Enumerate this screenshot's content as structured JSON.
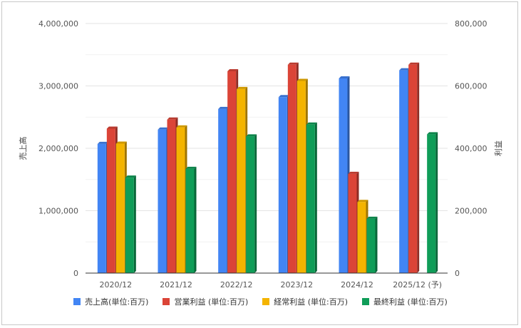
{
  "chart_data": {
    "type": "bar",
    "categories": [
      "2020/12",
      "2021/12",
      "2022/12",
      "2023/12",
      "2024/12",
      "2025/12 (予)"
    ],
    "left_axis": {
      "label": "売上高",
      "ylim": [
        0,
        4000000
      ],
      "ticks": [
        "0",
        "1,000,000",
        "2,000,000",
        "3,000,000",
        "4,000,000"
      ]
    },
    "right_axis": {
      "label": "利益",
      "ylim": [
        0,
        800000
      ],
      "ticks": [
        "0",
        "200,000",
        "400,000",
        "600,000",
        "800,000"
      ]
    },
    "series": [
      {
        "name": "売上高(単位:百万)",
        "axis": "left",
        "color": "#4285f4",
        "values": [
          2070000,
          2300000,
          2630000,
          2820000,
          3120000,
          3250000
        ]
      },
      {
        "name": "営業利益 (単位:百万)",
        "axis": "right",
        "color": "#db4437",
        "values": [
          463000,
          492000,
          647000,
          668000,
          318000,
          668000
        ]
      },
      {
        "name": "経常利益 (単位:百万)",
        "axis": "right",
        "color": "#f4b400",
        "values": [
          415000,
          467000,
          590000,
          616000,
          228000,
          null
        ]
      },
      {
        "name": "最終利益 (単位:百万)",
        "axis": "right",
        "color": "#0f9d58",
        "values": [
          306000,
          334000,
          438000,
          476000,
          174000,
          445000
        ]
      }
    ],
    "grid": true,
    "legend_position": "bottom"
  }
}
